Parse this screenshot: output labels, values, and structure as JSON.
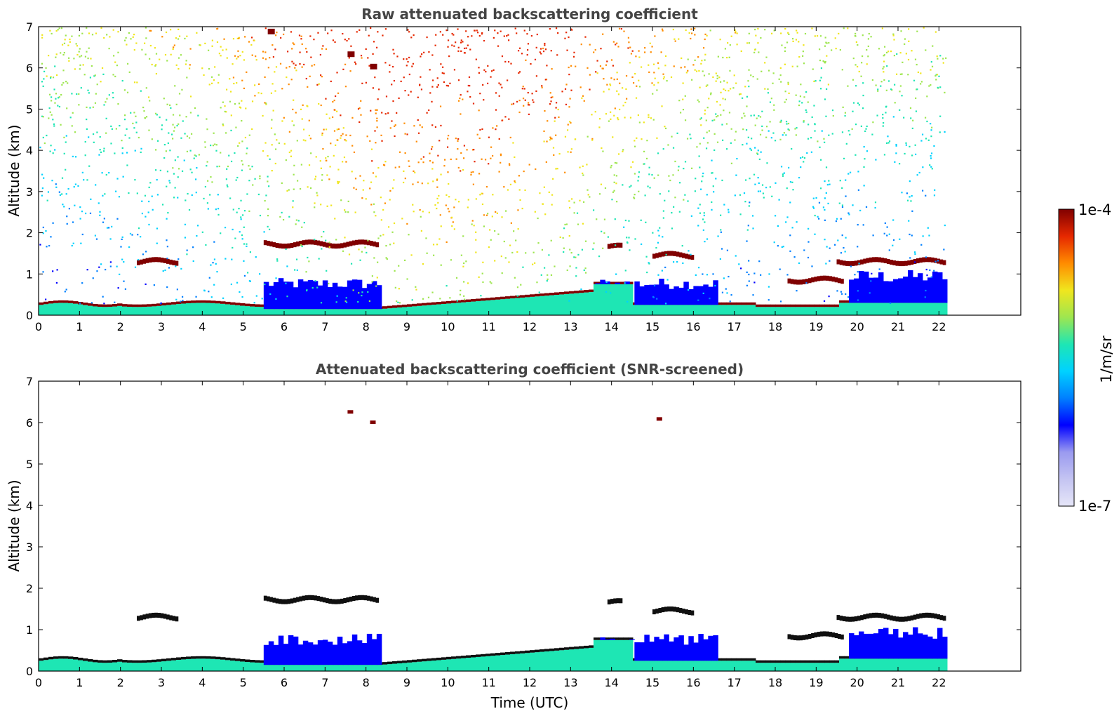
{
  "chart_data": [
    {
      "type": "heatmap",
      "title": "Raw attenuated backscattering coefficient",
      "xlabel": "",
      "ylabel": "Altitude (km)",
      "xlim": [
        0,
        24
      ],
      "ylim": [
        0,
        7
      ],
      "data_end_time": 22.15,
      "x_ticks": [
        0,
        1,
        2,
        3,
        4,
        5,
        6,
        7,
        8,
        9,
        10,
        11,
        12,
        13,
        14,
        15,
        16,
        17,
        18,
        19,
        20,
        21,
        22
      ],
      "y_ticks": [
        0,
        1,
        2,
        3,
        4,
        5,
        6,
        7
      ],
      "features": [
        {
          "name": "boundary-layer-aerosol",
          "description": "dense aerosol layer 0-0.8 km across the day"
        },
        {
          "name": "cloud-layer-1.7km",
          "time": [
            5.5,
            8.3
          ],
          "altitude": 1.7
        },
        {
          "name": "cloud-layer-1.3km",
          "time": [
            19.5,
            22.15
          ],
          "altitude": 1.3
        },
        {
          "name": "noise-background",
          "description": "solar background noise increasing with altitude"
        }
      ]
    },
    {
      "type": "heatmap",
      "title": "Attenuated backscattering coefficient (SNR-screened)",
      "xlabel": "Time (UTC)",
      "ylabel": "Altitude (km)",
      "xlim": [
        0,
        24
      ],
      "ylim": [
        0,
        7
      ],
      "data_end_time": 22.15,
      "x_ticks": [
        0,
        1,
        2,
        3,
        4,
        5,
        6,
        7,
        8,
        9,
        10,
        11,
        12,
        13,
        14,
        15,
        16,
        17,
        18,
        19,
        20,
        21,
        22
      ],
      "y_ticks": [
        0,
        1,
        2,
        3,
        4,
        5,
        6,
        7
      ],
      "features": [
        {
          "name": "boundary-layer-aerosol",
          "description": "aerosol layer retained after SNR screening"
        },
        {
          "name": "cloud-layer-1.7km",
          "time": [
            5.5,
            8.3
          ],
          "altitude": 1.7
        },
        {
          "name": "cloud-layer-1.3km",
          "time": [
            19.5,
            22.15
          ],
          "altitude": 1.3
        },
        {
          "name": "isolated-cloud-6km",
          "time": [
            7.5,
            8.2
          ],
          "altitude": 6.2
        }
      ]
    }
  ],
  "colorbar": {
    "max_label": "1e-4",
    "min_label": "1e-7",
    "unit_label": "1/m/sr",
    "colors": [
      "#e6e6f8",
      "#c4c4f2",
      "#9a9af0",
      "#0000ff",
      "#0080ff",
      "#00d2ff",
      "#1ee6b4",
      "#9ee650",
      "#f0e61e",
      "#ff8c00",
      "#e62800",
      "#800000"
    ]
  }
}
